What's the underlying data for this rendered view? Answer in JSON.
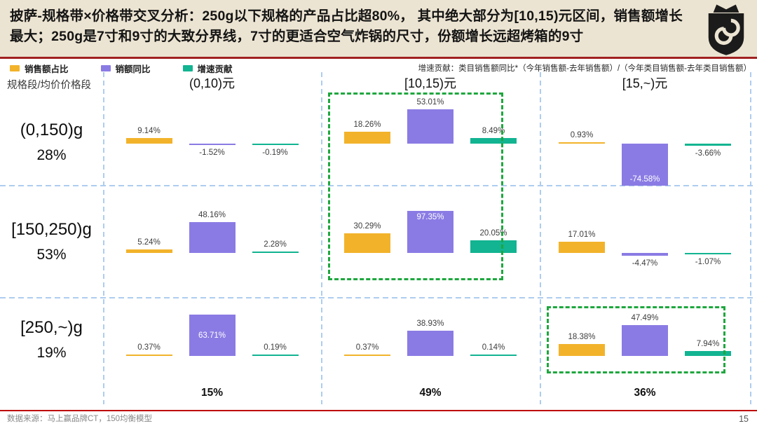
{
  "header": {
    "title": "披萨-规格带×价格带交叉分析：250g以下规格的产品占比超80%， 其中绝大部分为[10,15)元区间，销售额增长最大；250g是7寸和9寸的大致分界线，7寸的更适合空气炸锅的尺寸，份额增长远超烤箱的9寸"
  },
  "legend": {
    "items": [
      {
        "label": "销售额占比",
        "color": "#f2b32b"
      },
      {
        "label": "销额同比",
        "color": "#8a7be4"
      },
      {
        "label": "增速贡献",
        "color": "#12b491"
      }
    ],
    "note": "增速贡献：类目销售额同比*（今年销售额-去年销售额）/（今年类目销售额-去年类目销售额）"
  },
  "chart_data": {
    "type": "bar",
    "corner_label": "规格段/均价价格段",
    "series": [
      "销售额占比",
      "销额同比",
      "增速贡献"
    ],
    "series_colors": [
      "#f2b32b",
      "#8a7be4",
      "#12b491"
    ],
    "columns": [
      "(0,10)元",
      "[10,15)元",
      "[15,~)元"
    ],
    "rows": [
      {
        "label": "(0,150)g",
        "share": "28%"
      },
      {
        "label": "[150,250)g",
        "share": "53%"
      },
      {
        "label": "[250,~)g",
        "share": "19%"
      }
    ],
    "values_pct": [
      [
        [
          9.14,
          -1.52,
          -0.19
        ],
        [
          18.26,
          53.01,
          8.49
        ],
        [
          0.93,
          -74.58,
          -3.66
        ]
      ],
      [
        [
          5.24,
          48.16,
          2.28
        ],
        [
          30.29,
          97.35,
          20.05
        ],
        [
          17.01,
          -4.47,
          -1.07
        ]
      ],
      [
        [
          0.37,
          63.71,
          0.19
        ],
        [
          0.37,
          38.93,
          0.14
        ],
        [
          18.38,
          47.49,
          7.94
        ]
      ]
    ],
    "column_totals": [
      "15%",
      "49%",
      "36%"
    ],
    "highlight_boxes": [
      {
        "column": "[10,15)元",
        "rows": [
          "(0,150)g",
          "[150,250)g"
        ]
      },
      {
        "column": "[15,~)元",
        "rows": [
          "[250,~)g"
        ]
      }
    ]
  },
  "footer": {
    "source": "数据来源：马上赢品牌CT，150均衡模型",
    "page": "15"
  }
}
